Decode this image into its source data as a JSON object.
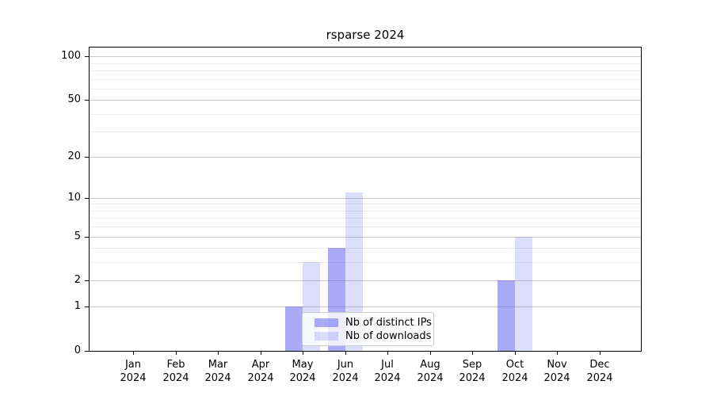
{
  "chart_data": {
    "type": "bar",
    "title": "rsparse 2024",
    "categories": [
      "Jan 2024",
      "Feb 2024",
      "Mar 2024",
      "Apr 2024",
      "May 2024",
      "Jun 2024",
      "Jul 2024",
      "Aug 2024",
      "Sep 2024",
      "Oct 2024",
      "Nov 2024",
      "Dec 2024"
    ],
    "series": [
      {
        "name": "Nb of distinct IPs",
        "color": "rgba(85,85,240,0.5)",
        "values": [
          0,
          0,
          0,
          0,
          1,
          4,
          0,
          0,
          0,
          2,
          0,
          0
        ]
      },
      {
        "name": "Nb of downloads",
        "color": "rgba(85,85,240,0.2)",
        "values": [
          0,
          0,
          0,
          0,
          3,
          11,
          0,
          0,
          0,
          5,
          0,
          0
        ]
      }
    ],
    "yscale": "log1p",
    "ylim": [
      0,
      115
    ],
    "yticks": [
      0,
      1,
      2,
      5,
      10,
      20,
      50,
      100
    ],
    "gridline_values": [
      1,
      2,
      3,
      4,
      5,
      6,
      7,
      8,
      9,
      10,
      20,
      30,
      40,
      50,
      60,
      70,
      80,
      90,
      100
    ],
    "grid": "horizontal",
    "legend_position": "inside-bottom-center",
    "colors": {
      "major_grid": "#c9c9c9",
      "minor_grid": "#ebebeb",
      "spine": "#000000"
    }
  }
}
